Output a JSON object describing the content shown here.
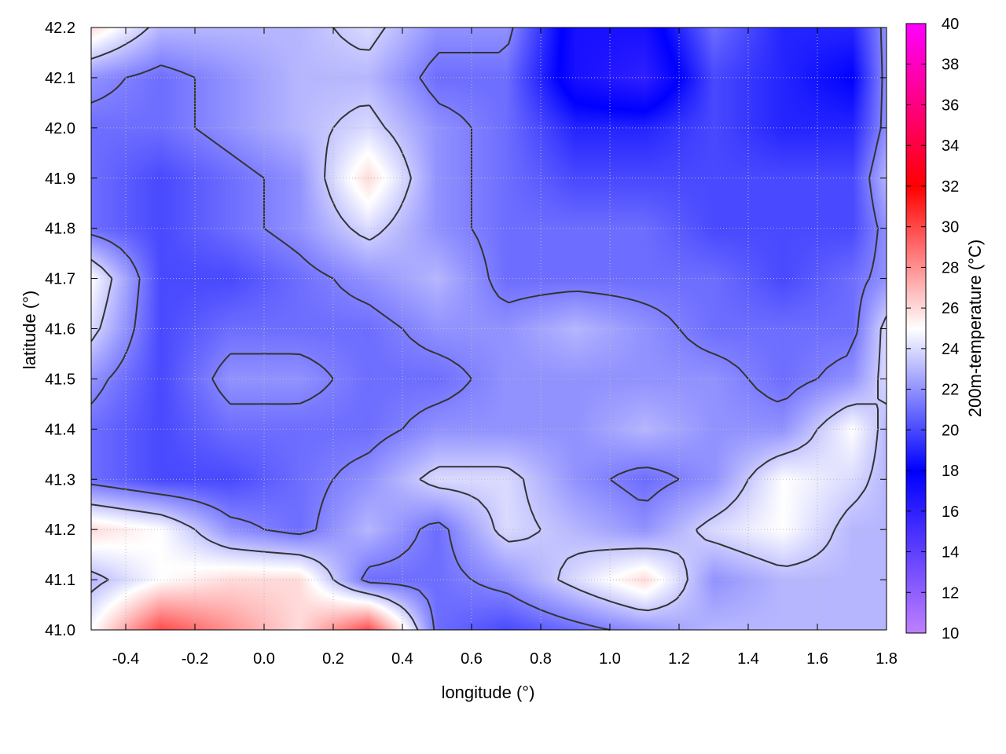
{
  "chart_data": {
    "type": "heatmap",
    "xlabel": "longitude (°)",
    "ylabel": "latitude (°)",
    "colorbar_label": "200m-temperature (°C)",
    "xlim": [
      -0.5,
      1.8
    ],
    "ylim": [
      41.0,
      42.2
    ],
    "clim": [
      10,
      40
    ],
    "grid": true,
    "xticks": [
      -0.4,
      -0.2,
      0.0,
      0.2,
      0.4,
      0.6,
      0.8,
      1.0,
      1.2,
      1.4,
      1.6,
      1.8
    ],
    "xtick_labels": [
      "-0.4",
      "-0.2",
      "0.0",
      "0.2",
      "0.4",
      "0.6",
      "0.8",
      "1.0",
      "1.2",
      "1.4",
      "1.6",
      "1.8"
    ],
    "yticks": [
      41.0,
      41.1,
      41.2,
      41.3,
      41.4,
      41.5,
      41.6,
      41.7,
      41.8,
      41.9,
      42.0,
      42.1,
      42.2
    ],
    "ytick_labels": [
      "41.0",
      "41.1",
      "41.2",
      "41.3",
      "41.4",
      "41.5",
      "41.6",
      "41.7",
      "41.8",
      "41.9",
      "42.0",
      "42.1",
      "42.2"
    ],
    "cticks": [
      10,
      12,
      14,
      16,
      18,
      20,
      22,
      24,
      26,
      28,
      30,
      32,
      34,
      36,
      38,
      40
    ],
    "ctick_labels": [
      "10",
      "12",
      "14",
      "16",
      "18",
      "20",
      "22",
      "24",
      "26",
      "28",
      "30",
      "32",
      "34",
      "36",
      "38",
      "40"
    ],
    "colormap": [
      {
        "value": 10,
        "color": "#c080ff"
      },
      {
        "value": 18,
        "color": "#0000ff"
      },
      {
        "value": 25,
        "color": "#ffffff"
      },
      {
        "value": 32,
        "color": "#ff0000"
      },
      {
        "value": 40,
        "color": "#ff00ff"
      }
    ],
    "contour_levels": [
      21.5,
      23.5
    ],
    "contour_color": "#333333",
    "grid_x": [
      -0.5,
      -0.3,
      -0.1,
      0.1,
      0.3,
      0.5,
      0.7,
      0.9,
      1.1,
      1.3,
      1.5,
      1.7,
      1.8
    ],
    "grid_y": [
      42.2,
      42.1,
      42.0,
      41.9,
      41.8,
      41.7,
      41.6,
      41.5,
      41.4,
      41.3,
      41.2,
      41.1,
      41.0
    ],
    "temperature": [
      [
        26,
        23,
        23,
        23,
        24,
        22,
        22,
        17,
        17,
        21,
        19,
        19,
        22
      ],
      [
        22,
        21,
        22,
        23,
        23,
        21,
        21,
        17,
        16,
        20,
        19,
        18,
        22
      ],
      [
        21,
        21,
        22,
        23,
        24,
        22,
        21,
        19,
        19,
        20,
        19,
        19,
        22
      ],
      [
        21,
        20,
        21,
        22,
        26,
        22,
        21,
        20,
        20,
        20,
        20,
        20,
        23
      ],
      [
        21,
        20,
        21,
        22,
        24,
        22,
        21,
        21,
        21,
        20,
        20,
        20,
        22
      ],
      [
        25,
        20,
        20,
        21,
        22,
        23,
        21,
        21,
        21,
        21,
        20,
        21,
        22
      ],
      [
        24,
        20,
        21,
        21,
        21,
        22,
        22,
        23,
        22,
        21,
        21,
        21,
        24
      ],
      [
        22,
        20,
        22,
        22,
        21,
        21,
        22,
        22,
        22,
        22,
        21,
        22,
        24
      ],
      [
        21,
        20,
        21,
        21,
        21,
        22,
        22,
        22,
        23,
        22,
        22,
        25,
        23
      ],
      [
        21,
        20,
        20,
        21,
        22,
        24,
        24,
        22,
        21,
        22,
        25,
        24,
        23
      ],
      [
        26,
        25,
        22,
        21,
        23,
        21,
        24,
        23,
        22,
        24,
        25,
        23,
        23
      ],
      [
        23,
        25,
        26,
        26,
        21,
        21,
        22,
        24,
        26,
        22,
        23,
        23,
        23
      ],
      [
        25,
        30,
        28,
        26,
        30,
        21,
        20,
        21,
        22,
        23,
        23,
        23,
        23
      ]
    ]
  }
}
